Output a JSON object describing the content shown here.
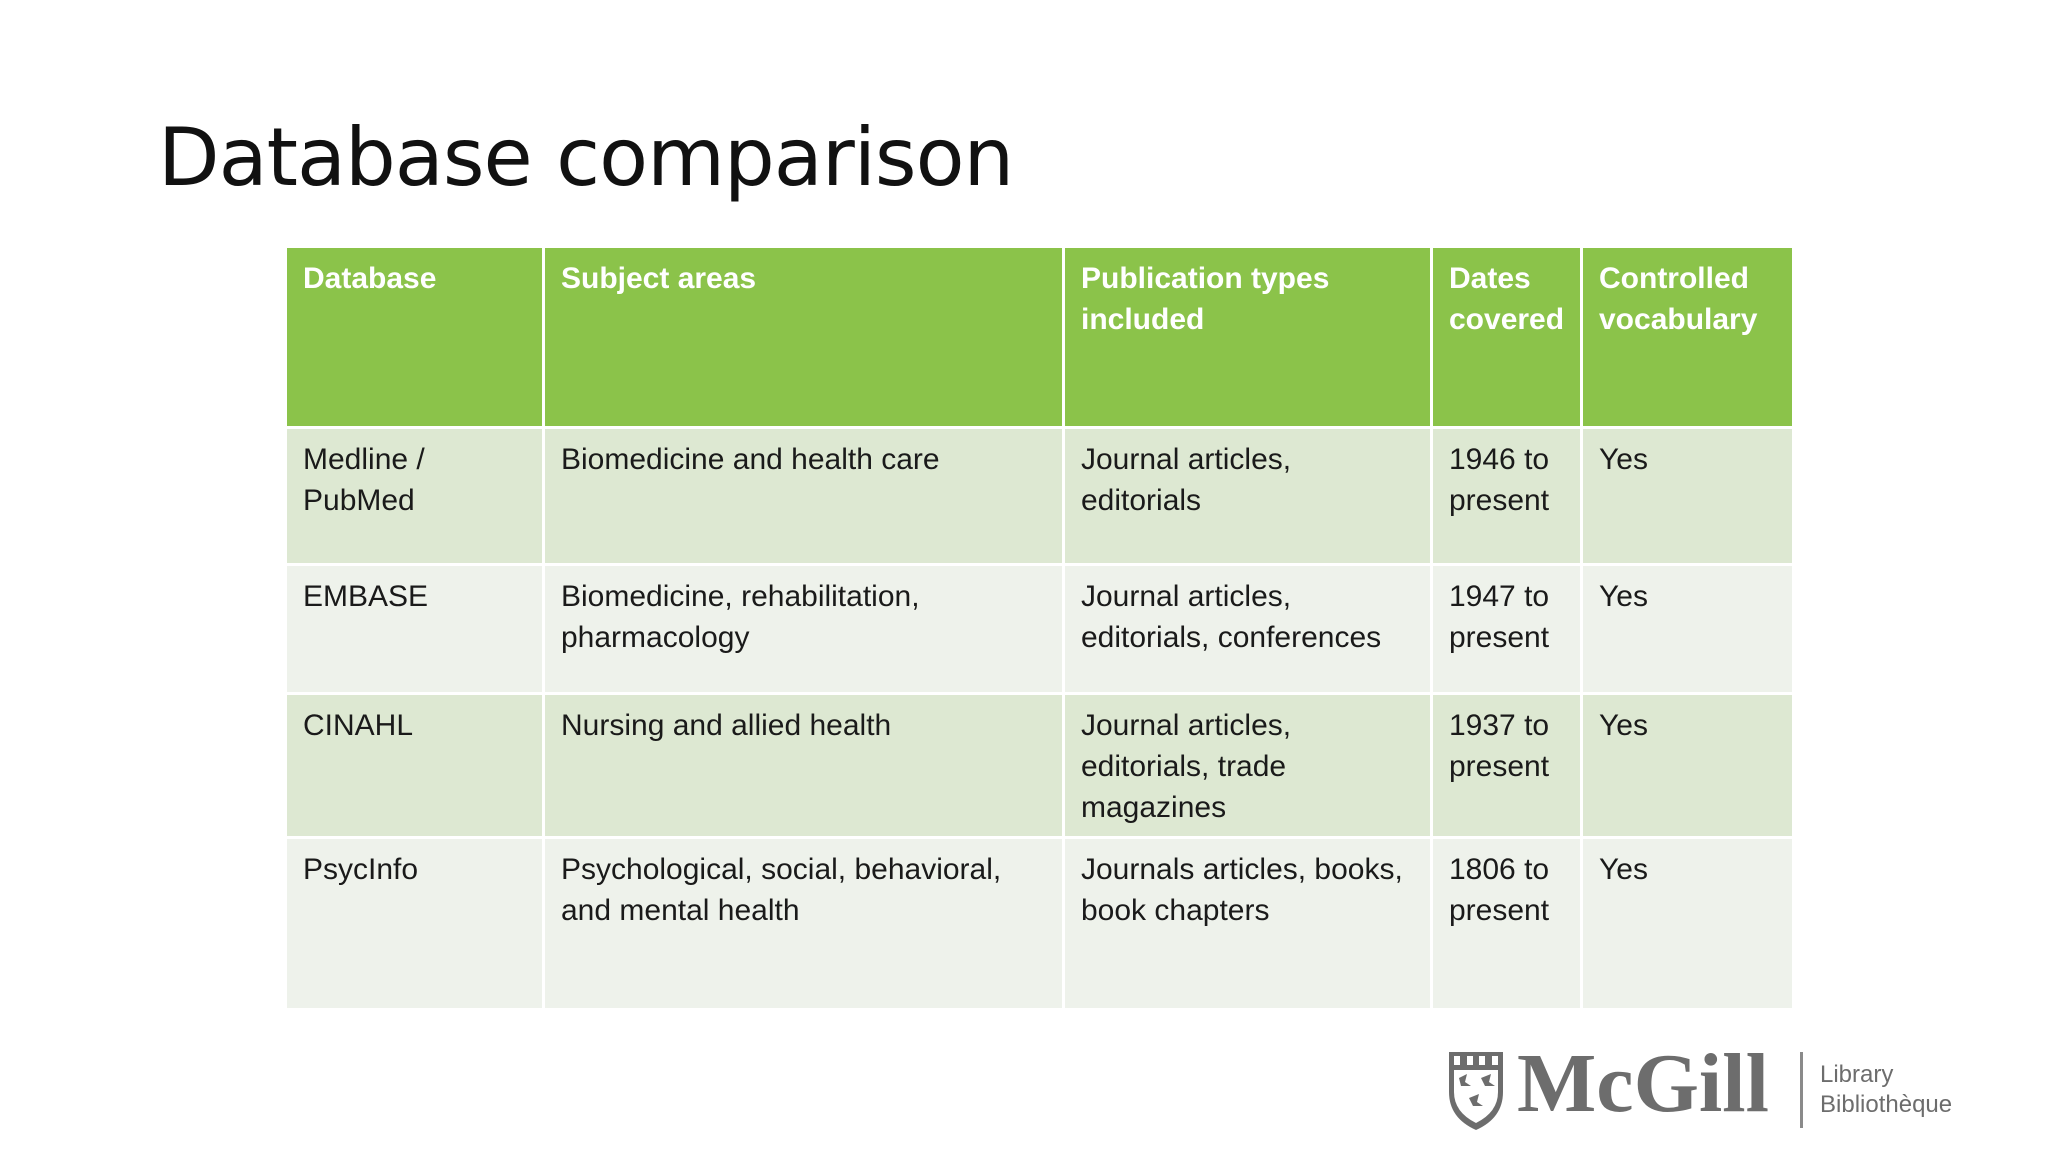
{
  "slide": {
    "title": "Database comparison"
  },
  "table": {
    "headers": {
      "database": "Database",
      "subject": "Subject areas",
      "pubtypes": "Publication types included",
      "dates": "Dates covered",
      "vocab": "Controlled vocabulary"
    },
    "rows": [
      {
        "database": "Medline / PubMed",
        "subject": "Biomedicine and health care",
        "pubtypes": "Journal articles, editorials",
        "dates": "1946 to present",
        "vocab": "Yes"
      },
      {
        "database": "EMBASE",
        "subject": "Biomedicine, rehabilitation, pharmacology",
        "pubtypes": "Journal articles, editorials, conferences",
        "dates": "1947 to present",
        "vocab": "Yes"
      },
      {
        "database": "CINAHL",
        "subject": "Nursing and allied health",
        "pubtypes": "Journal articles, editorials, trade magazines",
        "dates": "1937 to present",
        "vocab": "Yes"
      },
      {
        "database": "PsycInfo",
        "subject": "Psychological, social, behavioral, and mental health",
        "pubtypes": "Journals articles, books, book chapters",
        "dates": "1806 to present",
        "vocab": "Yes"
      }
    ]
  },
  "logo": {
    "wordmark": "McGill",
    "library_en": "Library",
    "library_fr": "Bibliothèque",
    "crest_icon": "mcgill-crest-icon"
  },
  "colors": {
    "header_bg": "#8bc34a",
    "row_odd_bg": "#dde8d2",
    "row_even_bg": "#eef2eb",
    "logo_gray": "#6d6d6d"
  }
}
